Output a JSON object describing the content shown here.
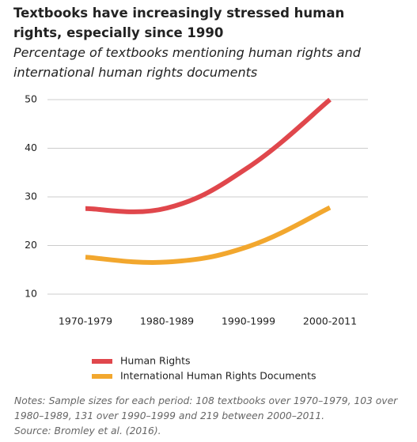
{
  "chart_data": {
    "type": "line",
    "title": "Textbooks have increasingly stressed human rights, especially since 1990",
    "subtitle": "Percentage of textbooks mentioning human rights and international human rights documents",
    "categories": [
      "1970-1979",
      "1980-1989",
      "1990-1999",
      "2000-2011"
    ],
    "series": [
      {
        "name": "Human Rights",
        "color": "#e0474c",
        "values": [
          27.6,
          27.7,
          36.1,
          50
        ]
      },
      {
        "name": "International Human Rights Documents",
        "color": "#f2a72e",
        "values": [
          17.6,
          16.6,
          19.8,
          27.8
        ]
      }
    ],
    "ylim": [
      10,
      50
    ],
    "yticks": [
      10,
      20,
      30,
      40,
      50
    ],
    "grid": true,
    "notes": "Notes: Sample sizes for each period: 108 textbooks over 1970–1979, 103 over 1980–1989, 131 over 1990–1999 and 219 between 2000–2011.",
    "source": "Source: Bromley et al. (2016)."
  }
}
